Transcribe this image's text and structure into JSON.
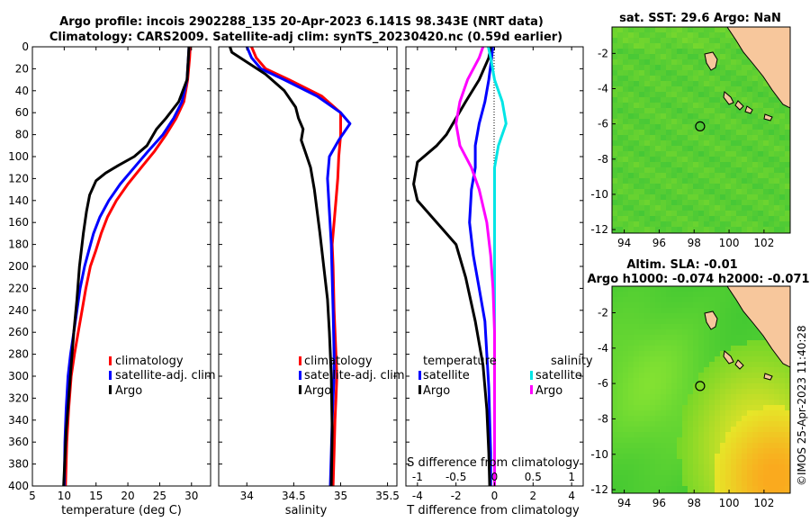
{
  "figure": {
    "title_line1": "Argo profile: incois 2902288_135 20-Apr-2023 6.141S 98.343E (NRT data)",
    "title_line2": "Climatology: CARS2009. Satellite-adj clim: synTS_20230420.nc (0.59d earlier)",
    "credit": "©IMOS 25-Apr-2023 11:40:28"
  },
  "colors": {
    "climatology": "#ff0000",
    "satellite": "#0000ff",
    "argo": "#000000",
    "sal_satellite": "#00e5e5",
    "sal_argo": "#ff00ff",
    "land": "#f7c79c",
    "ocean": "#33cc33"
  },
  "chart_data": [
    {
      "type": "line",
      "name": "temperature-profile",
      "xlabel": "temperature (deg C)",
      "ylabel": "depth",
      "xlim": [
        5,
        33
      ],
      "ylim": [
        0,
        400
      ],
      "xticks": [
        5,
        10,
        15,
        20,
        25,
        30
      ],
      "yticks": [
        0,
        20,
        40,
        60,
        80,
        100,
        120,
        140,
        160,
        180,
        200,
        220,
        240,
        260,
        280,
        300,
        320,
        340,
        360,
        380,
        400
      ],
      "legend": [
        "climatology",
        "satellite-adj. clim",
        "Argo"
      ],
      "series": [
        {
          "name": "climatology",
          "color": "#ff0000",
          "x": [
            29.8,
            29.7,
            29.4,
            28.8,
            27.6,
            26.0,
            24.2,
            22.1,
            20.0,
            18.2,
            16.8,
            15.8,
            15.0,
            14.1,
            13.4,
            12.8,
            12.2,
            11.6,
            11.1,
            10.7,
            10.4,
            10.2
          ],
          "y": [
            0,
            10,
            30,
            50,
            65,
            80,
            95,
            110,
            125,
            140,
            155,
            170,
            185,
            200,
            220,
            240,
            260,
            280,
            300,
            330,
            360,
            400
          ]
        },
        {
          "name": "satellite-adj. clim",
          "color": "#0000ff",
          "x": [
            29.6,
            29.5,
            29.3,
            28.5,
            27.2,
            25.5,
            23.2,
            21.0,
            18.8,
            17.0,
            15.6,
            14.6,
            13.9,
            13.2,
            12.5,
            12.0,
            11.5,
            11.0,
            10.6,
            10.3,
            10.1,
            10.0
          ],
          "y": [
            0,
            10,
            30,
            50,
            65,
            80,
            95,
            110,
            125,
            140,
            155,
            170,
            185,
            200,
            220,
            240,
            260,
            280,
            300,
            330,
            360,
            400
          ]
        },
        {
          "name": "Argo",
          "color": "#000000",
          "x": [
            29.6,
            29.5,
            29.3,
            28.0,
            26.0,
            24.5,
            23.0,
            21.0,
            18.5,
            16.5,
            15.0,
            14.0,
            13.5,
            13.0,
            12.4,
            12.0,
            11.5,
            11.1,
            10.7,
            10.3,
            10.1,
            9.9
          ],
          "y": [
            0,
            10,
            30,
            50,
            65,
            75,
            90,
            100,
            108,
            115,
            122,
            135,
            150,
            170,
            200,
            230,
            260,
            290,
            320,
            350,
            375,
            400
          ]
        }
      ]
    },
    {
      "type": "line",
      "name": "salinity-profile",
      "xlabel": "salinity",
      "ylabel": "depth",
      "xlim": [
        33.7,
        35.6
      ],
      "ylim": [
        0,
        400
      ],
      "xticks": [
        34,
        34.5,
        35,
        35.5
      ],
      "legend": [
        "climatology",
        "satellite-adj. clim",
        "Argo"
      ],
      "series": [
        {
          "name": "climatology",
          "color": "#ff0000",
          "x": [
            34.05,
            34.1,
            34.2,
            34.45,
            34.8,
            35.0,
            35.0,
            34.98,
            34.97,
            34.95,
            34.93,
            34.91,
            34.92,
            34.93,
            34.95,
            34.96,
            34.95,
            34.94,
            34.93,
            34.92
          ],
          "y": [
            0,
            10,
            20,
            30,
            45,
            60,
            80,
            100,
            120,
            140,
            160,
            180,
            200,
            240,
            280,
            300,
            320,
            340,
            370,
            400
          ]
        },
        {
          "name": "satellite-adj. clim",
          "color": "#0000ff",
          "x": [
            34.0,
            34.05,
            34.15,
            34.4,
            34.75,
            35.0,
            35.1,
            34.98,
            34.88,
            34.86,
            34.88,
            34.9,
            34.91,
            34.92,
            34.93,
            34.93,
            34.92,
            34.91,
            34.9,
            34.89
          ],
          "y": [
            0,
            10,
            20,
            30,
            45,
            60,
            70,
            85,
            100,
            120,
            150,
            180,
            210,
            240,
            280,
            300,
            320,
            340,
            370,
            400
          ]
        },
        {
          "name": "Argo",
          "color": "#000000",
          "x": [
            33.82,
            33.84,
            34.2,
            34.4,
            34.52,
            34.55,
            34.6,
            34.58,
            34.62,
            34.68,
            34.72,
            34.75,
            34.78,
            34.82,
            34.86,
            34.88,
            34.9,
            34.91,
            34.9
          ],
          "y": [
            0,
            5,
            25,
            40,
            55,
            65,
            75,
            85,
            95,
            110,
            130,
            150,
            170,
            200,
            230,
            260,
            300,
            350,
            400
          ]
        }
      ]
    },
    {
      "type": "line",
      "name": "difference-profile",
      "xlabel": "T difference from climatology",
      "xlabel_top": "S difference from climatology",
      "xlim": [
        -4.6,
        4.6
      ],
      "ylim": [
        0,
        400
      ],
      "xticks": [
        -4,
        -2,
        0,
        2,
        4
      ],
      "xlim_top": [
        -1.15,
        1.15
      ],
      "xticks_top": [
        -1,
        -0.5,
        0,
        0.5,
        1
      ],
      "legend_left_title": "temperature",
      "legend_right_title": "salinity",
      "legend_left": [
        "satellite",
        "Argo"
      ],
      "legend_right": [
        "satellite",
        "Argo"
      ],
      "series": [
        {
          "name": "temperature satellite",
          "color": "#0000ff",
          "axis": "T",
          "x": [
            -0.1,
            -0.15,
            -0.3,
            -0.5,
            -0.8,
            -1.0,
            -1.0,
            -1.2,
            -1.3,
            -1.1,
            -0.8,
            -0.5,
            -0.4,
            -0.3,
            -0.25,
            -0.2,
            -0.2
          ],
          "y": [
            0,
            10,
            30,
            50,
            70,
            90,
            110,
            130,
            160,
            190,
            220,
            250,
            280,
            310,
            340,
            370,
            400
          ]
        },
        {
          "name": "temperature Argo",
          "color": "#000000",
          "axis": "T",
          "x": [
            -0.2,
            -0.3,
            -0.8,
            -1.5,
            -2.5,
            -3.0,
            -4.0,
            -4.2,
            -4.0,
            -3.0,
            -2.0,
            -1.5,
            -1.0,
            -0.6,
            -0.4,
            -0.3,
            -0.25
          ],
          "y": [
            0,
            10,
            30,
            50,
            80,
            90,
            105,
            125,
            140,
            160,
            180,
            210,
            250,
            290,
            330,
            370,
            400
          ]
        },
        {
          "name": "salinity satellite",
          "color": "#00e5e5",
          "axis": "S",
          "x": [
            -0.08,
            -0.05,
            0.0,
            0.1,
            0.15,
            0.05,
            0.0,
            0.0,
            0.0,
            0.0,
            0.0,
            0.0,
            0.0,
            0.0,
            0.0,
            0.0
          ],
          "y": [
            0,
            10,
            30,
            50,
            70,
            90,
            110,
            130,
            160,
            190,
            220,
            250,
            280,
            320,
            360,
            400
          ]
        },
        {
          "name": "salinity Argo",
          "color": "#ff00ff",
          "axis": "S",
          "x": [
            -0.15,
            -0.2,
            -0.35,
            -0.45,
            -0.5,
            -0.45,
            -0.3,
            -0.2,
            -0.1,
            -0.05,
            -0.02,
            0.0,
            0.0,
            0.0,
            0.0
          ],
          "y": [
            0,
            10,
            30,
            50,
            70,
            90,
            110,
            130,
            160,
            190,
            220,
            260,
            300,
            350,
            400
          ]
        }
      ]
    },
    {
      "type": "heatmap",
      "name": "sst-map",
      "title": "sat. SST: 29.6 Argo: NaN",
      "xlim": [
        93.3,
        103.5
      ],
      "ylim": [
        -12.2,
        -0.5
      ],
      "xticks": [
        94,
        96,
        98,
        100,
        102
      ],
      "yticks": [
        -2,
        -4,
        -6,
        -8,
        -10,
        -12
      ],
      "marker": {
        "lon": 98.343,
        "lat": -6.141
      }
    },
    {
      "type": "heatmap",
      "name": "sla-map",
      "title": "Altim. SLA: -0.01",
      "subtitle": "Argo h1000: -0.074 h2000: -0.071",
      "xlim": [
        93.3,
        103.5
      ],
      "ylim": [
        -12.2,
        -0.5
      ],
      "xticks": [
        94,
        96,
        98,
        100,
        102
      ],
      "yticks": [
        -2,
        -4,
        -6,
        -8,
        -10,
        -12
      ],
      "marker": {
        "lon": 98.343,
        "lat": -6.141
      }
    }
  ]
}
